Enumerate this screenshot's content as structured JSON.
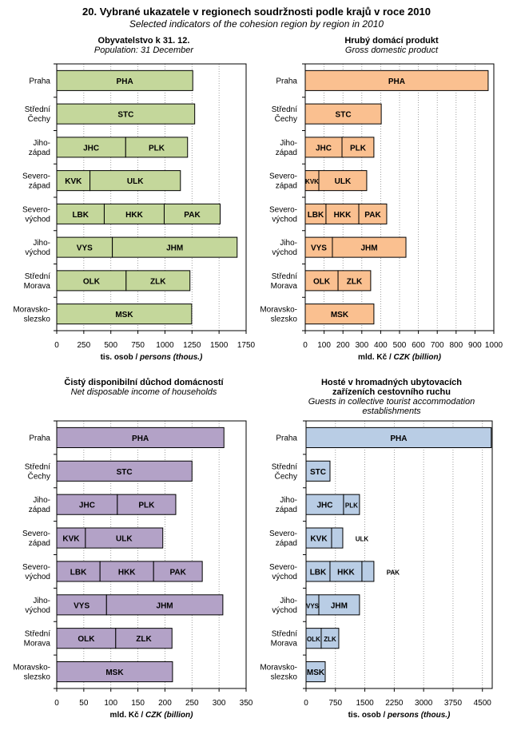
{
  "title": "20. Vybrané ukazatele v regionech soudržnosti podle krajů v roce 2010",
  "subtitle": "Selected indicators of the cohesion region by region in 2010",
  "chart_data": [
    {
      "type": "bar",
      "orientation": "horizontal-stacked",
      "title": "Obyvatelstvo k 31. 12.",
      "subtitle": "Population: 31 December",
      "xlabel_cz": "tis. osob / ",
      "xlabel_en": "persons (thous.)",
      "xlim": [
        0,
        1750
      ],
      "ticks": [
        0,
        250,
        500,
        750,
        1000,
        1250,
        1500,
        1750
      ],
      "color": "#C4D79B",
      "categories": [
        "Praha",
        "Střední\nČechy",
        "Jiho-\nzápad",
        "Severo-\nzápad",
        "Severo-\nvýchod",
        "Jiho-\nvýchod",
        "Střední\nMorava",
        "Moravsko-\nslezsko"
      ],
      "rows": [
        [
          {
            "label": "PHA",
            "value": 1257
          }
        ],
        [
          {
            "label": "STC",
            "value": 1275
          }
        ],
        [
          {
            "label": "JHC",
            "value": 637
          },
          {
            "label": "PLK",
            "value": 572
          }
        ],
        [
          {
            "label": "KVK",
            "value": 307
          },
          {
            "label": "ULK",
            "value": 836
          }
        ],
        [
          {
            "label": "LBK",
            "value": 439
          },
          {
            "label": "HKK",
            "value": 554
          },
          {
            "label": "PAK",
            "value": 517
          }
        ],
        [
          {
            "label": "VYS",
            "value": 514
          },
          {
            "label": "JHM",
            "value": 1153
          }
        ],
        [
          {
            "label": "OLK",
            "value": 641
          },
          {
            "label": "ZLK",
            "value": 590
          }
        ],
        [
          {
            "label": "MSK",
            "value": 1247
          }
        ]
      ]
    },
    {
      "type": "bar",
      "orientation": "horizontal-stacked",
      "title": "Hrubý domácí produkt",
      "subtitle": "Gross domestic product",
      "xlabel_cz": "mld. Kč / ",
      "xlabel_en": "CZK (billion)",
      "xlim": [
        0,
        1000
      ],
      "ticks": [
        0,
        100,
        200,
        300,
        400,
        500,
        600,
        700,
        800,
        900,
        1000
      ],
      "color": "#FAC090",
      "categories": [
        "Praha",
        "Střední\nČechy",
        "Jiho-\nzápad",
        "Severo-\nzápad",
        "Severo-\nvýchod",
        "Jiho-\nvýchod",
        "Střední\nMorava",
        "Moravsko-\nslezsko"
      ],
      "rows": [
        [
          {
            "label": "PHA",
            "value": 970
          }
        ],
        [
          {
            "label": "STC",
            "value": 403
          }
        ],
        [
          {
            "label": "JHC",
            "value": 195
          },
          {
            "label": "PLK",
            "value": 169
          }
        ],
        [
          {
            "label": "KVK",
            "value": 72
          },
          {
            "label": "ULK",
            "value": 254
          }
        ],
        [
          {
            "label": "LBK",
            "value": 110
          },
          {
            "label": "HKK",
            "value": 174
          },
          {
            "label": "PAK",
            "value": 148
          }
        ],
        [
          {
            "label": "VYS",
            "value": 144
          },
          {
            "label": "JHM",
            "value": 390
          }
        ],
        [
          {
            "label": "OLK",
            "value": 174
          },
          {
            "label": "ZLK",
            "value": 173
          }
        ],
        [
          {
            "label": "MSK",
            "value": 364
          }
        ]
      ]
    },
    {
      "type": "bar",
      "orientation": "horizontal-stacked",
      "title": "Čistý disponibilní důchod domácností",
      "subtitle": "Net disposable income of households",
      "xlabel_cz": "mld. Kč / ",
      "xlabel_en": "CZK (billion)",
      "xlim": [
        0,
        350
      ],
      "ticks": [
        0,
        50,
        100,
        150,
        200,
        250,
        300,
        350
      ],
      "color": "#B3A2C7",
      "categories": [
        "Praha",
        "Střední\nČechy",
        "Jiho-\nzápad",
        "Severo-\nzápad",
        "Severo-\nvýchod",
        "Jiho-\nvýchod",
        "Střední\nMorava",
        "Moravsko-\nslezsko"
      ],
      "rows": [
        [
          {
            "label": "PHA",
            "value": 309
          }
        ],
        [
          {
            "label": "STC",
            "value": 250
          }
        ],
        [
          {
            "label": "JHC",
            "value": 112
          },
          {
            "label": "PLK",
            "value": 108
          }
        ],
        [
          {
            "label": "KVK",
            "value": 53
          },
          {
            "label": "ULK",
            "value": 143
          }
        ],
        [
          {
            "label": "LBK",
            "value": 80
          },
          {
            "label": "HKK",
            "value": 99
          },
          {
            "label": "PAK",
            "value": 90
          }
        ],
        [
          {
            "label": "VYS",
            "value": 92
          },
          {
            "label": "JHM",
            "value": 215
          }
        ],
        [
          {
            "label": "OLK",
            "value": 109
          },
          {
            "label": "ZLK",
            "value": 104
          }
        ],
        [
          {
            "label": "MSK",
            "value": 214
          }
        ]
      ]
    },
    {
      "type": "bar",
      "orientation": "horizontal-stacked",
      "title": "Hosté v hromadných ubytovacích zařízeních cestovního ruchu",
      "subtitle": "Guests in collective tourist accommodation establishments",
      "xlabel_cz": "tis. osob / ",
      "xlabel_en": "persons (thous.)",
      "xlim": [
        0,
        4750
      ],
      "ticks": [
        0,
        750,
        1500,
        2250,
        3000,
        3750,
        4500
      ],
      "color": "#B9CDE5",
      "categories": [
        "Praha",
        "Střední\nČechy",
        "Jiho-\nzápad",
        "Severo-\nzápad",
        "Severo-\nvýchod",
        "Jiho-\nvýchod",
        "Střední\nMorava",
        "Moravsko-\nslezsko"
      ],
      "rows": [
        [
          {
            "label": "PHA",
            "value": 4725
          }
        ],
        [
          {
            "label": "STC",
            "value": 611
          }
        ],
        [
          {
            "label": "JHC",
            "value": 957
          },
          {
            "label": "PLK",
            "value": 407
          }
        ],
        [
          {
            "label": "KVK",
            "value": 652
          },
          {
            "label": "ULK",
            "value": 285,
            "label_outside": true
          }
        ],
        [
          {
            "label": "LBK",
            "value": 611
          },
          {
            "label": "HKK",
            "value": 815
          },
          {
            "label": "PAK",
            "value": 305,
            "label_outside": true
          }
        ],
        [
          {
            "label": "VYS",
            "value": 326
          },
          {
            "label": "JHM",
            "value": 1038
          }
        ],
        [
          {
            "label": "OLK",
            "value": 387
          },
          {
            "label": "ZLK",
            "value": 448
          }
        ],
        [
          {
            "label": "MSK",
            "value": 489
          }
        ]
      ]
    }
  ]
}
